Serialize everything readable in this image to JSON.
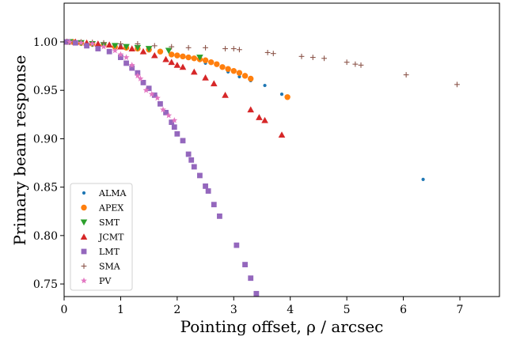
{
  "chart_data": {
    "type": "scatter",
    "xlabel": "Pointing offset, ρ / arcsec",
    "ylabel": "Primary beam response",
    "xlim": [
      0,
      7.7
    ],
    "ylim": [
      0.737,
      1.04
    ],
    "xticks": [
      "0",
      "1",
      "2",
      "3",
      "4",
      "5",
      "6",
      "7"
    ],
    "yticks": [
      "0.75",
      "0.80",
      "0.85",
      "0.90",
      "0.95",
      "1.00"
    ],
    "grid": false,
    "legend_position": "lower-left",
    "series": [
      {
        "name": "ALMA",
        "color": "#1f77b4",
        "marker": "dot",
        "points": [
          [
            0.05,
            1.0
          ],
          [
            0.2,
            0.9995
          ],
          [
            0.4,
            0.999
          ],
          [
            0.6,
            0.998
          ],
          [
            0.8,
            0.997
          ],
          [
            1.0,
            0.996
          ],
          [
            1.5,
            0.992
          ],
          [
            2.0,
            0.987
          ],
          [
            2.5,
            0.978
          ],
          [
            2.9,
            0.969
          ],
          [
            3.1,
            0.964
          ],
          [
            3.3,
            0.96
          ],
          [
            3.55,
            0.955
          ],
          [
            3.85,
            0.946
          ],
          [
            6.35,
            0.858
          ]
        ]
      },
      {
        "name": "APEX",
        "color": "#ff7f0e",
        "marker": "circle",
        "points": [
          [
            0.05,
            1.0
          ],
          [
            0.15,
            1.0
          ],
          [
            0.3,
            0.999
          ],
          [
            0.5,
            0.998
          ],
          [
            0.7,
            0.997
          ],
          [
            0.9,
            0.995
          ],
          [
            1.1,
            0.994
          ],
          [
            1.3,
            0.993
          ],
          [
            1.5,
            0.992
          ],
          [
            1.7,
            0.99
          ],
          [
            1.9,
            0.987
          ],
          [
            2.0,
            0.986
          ],
          [
            2.1,
            0.985
          ],
          [
            2.2,
            0.984
          ],
          [
            2.3,
            0.983
          ],
          [
            2.4,
            0.982
          ],
          [
            2.5,
            0.981
          ],
          [
            2.6,
            0.979
          ],
          [
            2.7,
            0.977
          ],
          [
            2.8,
            0.974
          ],
          [
            2.9,
            0.972
          ],
          [
            3.0,
            0.97
          ],
          [
            3.1,
            0.968
          ],
          [
            3.2,
            0.965
          ],
          [
            3.3,
            0.962
          ],
          [
            3.95,
            0.943
          ]
        ]
      },
      {
        "name": "SMT",
        "color": "#2ca02c",
        "marker": "triangle-down",
        "points": [
          [
            0.1,
            1.0
          ],
          [
            0.3,
            0.999
          ],
          [
            0.5,
            0.998
          ],
          [
            0.7,
            0.997
          ],
          [
            0.9,
            0.996
          ],
          [
            1.1,
            0.995
          ],
          [
            1.3,
            0.994
          ],
          [
            1.5,
            0.993
          ],
          [
            1.85,
            0.991
          ],
          [
            2.4,
            0.984
          ]
        ]
      },
      {
        "name": "JCMT",
        "color": "#d62728",
        "marker": "triangle-up",
        "points": [
          [
            0.05,
            1.0
          ],
          [
            0.2,
            1.0
          ],
          [
            0.4,
            0.999
          ],
          [
            0.6,
            0.998
          ],
          [
            0.8,
            0.997
          ],
          [
            1.0,
            0.995
          ],
          [
            1.2,
            0.993
          ],
          [
            1.4,
            0.99
          ],
          [
            1.6,
            0.986
          ],
          [
            1.8,
            0.982
          ],
          [
            1.9,
            0.979
          ],
          [
            2.0,
            0.976
          ],
          [
            2.1,
            0.974
          ],
          [
            2.3,
            0.969
          ],
          [
            2.5,
            0.963
          ],
          [
            2.65,
            0.957
          ],
          [
            2.85,
            0.945
          ],
          [
            3.3,
            0.93
          ],
          [
            3.45,
            0.922
          ],
          [
            3.55,
            0.919
          ],
          [
            3.85,
            0.904
          ]
        ]
      },
      {
        "name": "LMT",
        "color": "#9467bd",
        "marker": "square",
        "points": [
          [
            0.05,
            1.0
          ],
          [
            0.2,
            0.999
          ],
          [
            0.4,
            0.996
          ],
          [
            0.6,
            0.993
          ],
          [
            0.8,
            0.99
          ],
          [
            1.0,
            0.984
          ],
          [
            1.1,
            0.978
          ],
          [
            1.2,
            0.973
          ],
          [
            1.3,
            0.968
          ],
          [
            1.4,
            0.958
          ],
          [
            1.5,
            0.952
          ],
          [
            1.6,
            0.945
          ],
          [
            1.7,
            0.936
          ],
          [
            1.8,
            0.927
          ],
          [
            1.9,
            0.917
          ],
          [
            1.95,
            0.912
          ],
          [
            2.0,
            0.905
          ],
          [
            2.1,
            0.898
          ],
          [
            2.2,
            0.884
          ],
          [
            2.25,
            0.878
          ],
          [
            2.3,
            0.871
          ],
          [
            2.4,
            0.862
          ],
          [
            2.5,
            0.851
          ],
          [
            2.55,
            0.846
          ],
          [
            2.65,
            0.832
          ],
          [
            2.75,
            0.82
          ],
          [
            3.05,
            0.79
          ],
          [
            3.2,
            0.77
          ],
          [
            3.3,
            0.756
          ],
          [
            3.4,
            0.74
          ]
        ]
      },
      {
        "name": "SMA",
        "color": "#8c564b",
        "marker": "plus",
        "points": [
          [
            0.1,
            1.0
          ],
          [
            0.3,
            1.0
          ],
          [
            0.5,
            0.9995
          ],
          [
            0.7,
            0.999
          ],
          [
            1.0,
            0.998
          ],
          [
            1.3,
            0.998
          ],
          [
            1.6,
            0.996
          ],
          [
            1.9,
            0.995
          ],
          [
            2.2,
            0.994
          ],
          [
            2.5,
            0.994
          ],
          [
            2.85,
            0.993
          ],
          [
            3.0,
            0.993
          ],
          [
            3.1,
            0.992
          ],
          [
            3.6,
            0.989
          ],
          [
            3.7,
            0.988
          ],
          [
            4.2,
            0.985
          ],
          [
            4.4,
            0.984
          ],
          [
            4.6,
            0.983
          ],
          [
            5.0,
            0.979
          ],
          [
            5.15,
            0.977
          ],
          [
            5.25,
            0.976
          ],
          [
            6.05,
            0.966
          ],
          [
            6.95,
            0.956
          ]
        ]
      },
      {
        "name": "PV",
        "color": "#e377c2",
        "marker": "star",
        "points": [
          [
            0.1,
            1.0
          ],
          [
            0.3,
            0.999
          ],
          [
            0.5,
            0.998
          ],
          [
            0.7,
            0.995
          ],
          [
            0.9,
            0.991
          ],
          [
            1.0,
            0.987
          ],
          [
            1.1,
            0.984
          ],
          [
            1.2,
            0.976
          ],
          [
            1.3,
            0.965
          ],
          [
            1.35,
            0.962
          ],
          [
            1.45,
            0.95
          ],
          [
            1.55,
            0.946
          ],
          [
            1.65,
            0.942
          ],
          [
            1.75,
            0.93
          ],
          [
            1.85,
            0.924
          ],
          [
            1.95,
            0.919
          ]
        ]
      }
    ]
  }
}
